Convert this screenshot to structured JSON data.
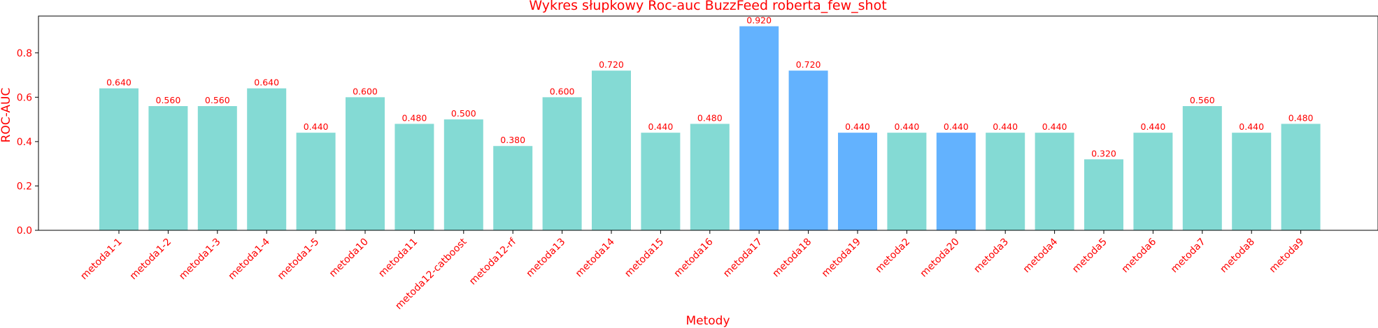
{
  "chart_data": {
    "type": "bar",
    "title": "Wykres słupkowy Roc-auc BuzzFeed roberta_few_shot",
    "xlabel": "Metody",
    "ylabel": "ROC-AUC",
    "ylim": [
      0,
      0.966
    ],
    "yticks": [
      "0.0",
      "0.2",
      "0.4",
      "0.6",
      "0.8"
    ],
    "grid": false,
    "categories": [
      "metoda1-1",
      "metoda1-2",
      "metoda1-3",
      "metoda1-4",
      "metoda1-5",
      "metoda10",
      "metoda11",
      "metoda12-catboost",
      "metoda12-rf",
      "metoda13",
      "metoda14",
      "metoda15",
      "metoda16",
      "metoda17",
      "metoda18",
      "metoda19",
      "metoda2",
      "metoda20",
      "metoda3",
      "metoda4",
      "metoda5",
      "metoda6",
      "metoda7",
      "metoda8",
      "metoda9"
    ],
    "values": [
      0.64,
      0.56,
      0.56,
      0.64,
      0.44,
      0.6,
      0.48,
      0.5,
      0.38,
      0.6,
      0.72,
      0.44,
      0.48,
      0.92,
      0.72,
      0.44,
      0.44,
      0.44,
      0.44,
      0.44,
      0.32,
      0.44,
      0.56,
      0.44,
      0.48
    ],
    "value_labels": [
      "0.640",
      "0.560",
      "0.560",
      "0.640",
      "0.440",
      "0.600",
      "0.480",
      "0.500",
      "0.380",
      "0.600",
      "0.720",
      "0.440",
      "0.480",
      "0.920",
      "0.720",
      "0.440",
      "0.440",
      "0.440",
      "0.440",
      "0.440",
      "0.320",
      "0.440",
      "0.560",
      "0.440",
      "0.480"
    ],
    "highlighted": [
      false,
      false,
      false,
      false,
      false,
      false,
      false,
      false,
      false,
      false,
      false,
      false,
      false,
      true,
      true,
      true,
      false,
      true,
      false,
      false,
      false,
      false,
      false,
      false,
      false
    ],
    "colors": {
      "bar": "#84dad4",
      "highlight": "#63b2fe",
      "text": "#ff0000",
      "axis": "#000000"
    }
  }
}
